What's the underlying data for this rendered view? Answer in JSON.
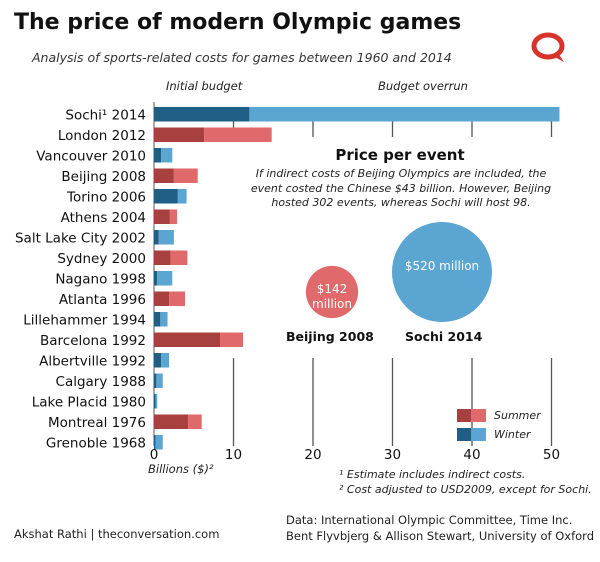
{
  "header": {
    "title": "The price of modern Olympic games",
    "subtitle": "Analysis of sports-related costs for games between 1960 and 2014"
  },
  "column_headers": {
    "initial": "Initial budget",
    "overrun": "Budget overrun"
  },
  "annotation": {
    "title": "Price per event",
    "text": "If indirect costs of Beijing Olympics are included, the event costed the Chinese $43 billion. However, Beijing hosted 302 events, whereas Sochi will host 98.",
    "beijing_value": "$142 million",
    "beijing_label": "Beijing 2008",
    "sochi_value": "$520 million",
    "sochi_label": "Sochi 2014"
  },
  "legend": {
    "summer": "Summer",
    "winter": "Winter"
  },
  "notes": {
    "note1": "¹ Estimate includes indirect costs.",
    "note2": "² Cost adjusted to USD2009, except for Sochi."
  },
  "footer": {
    "author": "Akshat Rathi | theconversation.com",
    "source_line1": "Data: International Olympic Committee, Time Inc.",
    "source_line2": "Bent Flyvbjerg & Allison Stewart, University of Oxford"
  },
  "colors": {
    "summer_dark": "#a8403f",
    "summer_light": "#e06a6b",
    "winter_dark": "#1f5f85",
    "winter_light": "#5aa5d1",
    "grid": "#555555",
    "logo": "#d9342b"
  },
  "chart_data": {
    "type": "bar",
    "orientation": "horizontal",
    "stacked": true,
    "xlabel": "Billions ($)²",
    "xlim": [
      0,
      52
    ],
    "xticks": [
      0,
      10,
      20,
      30,
      40,
      50
    ],
    "categories": [
      "Sochi¹ 2014",
      "London 2012",
      "Vancouver 2010",
      "Beijing 2008",
      "Torino 2006",
      "Athens 2004",
      "Salt Lake City 2002",
      "Sydney 2000",
      "Nagano 1998",
      "Atlanta 1996",
      "Lillehammer 1994",
      "Barcelona 1992",
      "Albertville 1992",
      "Calgary 1988",
      "Lake Placid 1980",
      "Montreal 1976",
      "Grenoble 1968"
    ],
    "season": [
      "winter",
      "summer",
      "winter",
      "summer",
      "winter",
      "summer",
      "winter",
      "summer",
      "winter",
      "summer",
      "winter",
      "summer",
      "winter",
      "winter",
      "winter",
      "summer",
      "winter"
    ],
    "series": [
      {
        "name": "Initial budget",
        "values": [
          12.0,
          6.3,
          0.9,
          2.5,
          3.0,
          2.0,
          0.6,
          2.1,
          0.4,
          1.9,
          0.8,
          8.3,
          0.9,
          0.3,
          0.2,
          4.3,
          0.2
        ]
      },
      {
        "name": "Budget overrun",
        "values": [
          39.0,
          8.5,
          1.4,
          3.0,
          1.1,
          0.9,
          1.9,
          2.1,
          1.9,
          2.0,
          0.9,
          2.9,
          1.0,
          0.8,
          0.2,
          1.7,
          0.9
        ]
      }
    ],
    "bubbles": [
      {
        "label": "Beijing 2008",
        "value_millions": 142,
        "season": "summer"
      },
      {
        "label": "Sochi 2014",
        "value_millions": 520,
        "season": "winter"
      }
    ],
    "legend_position": "bottom-right",
    "grid": false
  }
}
